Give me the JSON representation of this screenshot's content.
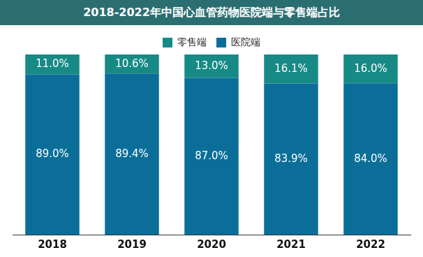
{
  "chart_data": {
    "type": "bar",
    "title": "2018-2022年中国心血管药物医院端与零售端占比",
    "categories": [
      "2018",
      "2019",
      "2020",
      "2021",
      "2022"
    ],
    "series": [
      {
        "name": "医院端",
        "color": "#0b6e99",
        "values": [
          89.0,
          89.4,
          87.0,
          83.9,
          84.0
        ],
        "value_labels": [
          "89.0%",
          "89.4%",
          "87.0%",
          "83.9%",
          "84.0%"
        ]
      },
      {
        "name": "零售端",
        "color": "#178a86",
        "values": [
          11.0,
          10.6,
          13.0,
          16.1,
          16.0
        ],
        "value_labels": [
          "11.0%",
          "10.6%",
          "13.0%",
          "16.1%",
          "16.0%"
        ]
      }
    ],
    "stacked": true,
    "ylim": [
      0,
      100
    ],
    "grid": false,
    "legend": "top",
    "data_labels": true,
    "tick_labels": "x"
  }
}
